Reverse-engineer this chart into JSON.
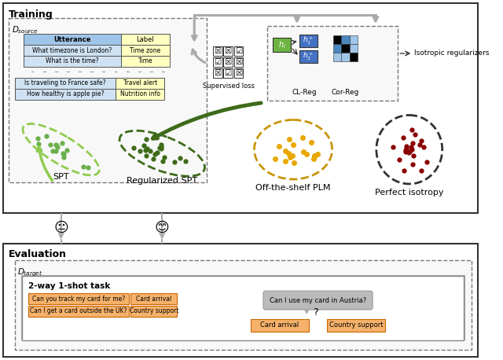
{
  "fig_width": 6.4,
  "fig_height": 4.58,
  "dpi": 100,
  "bg_color": "#ffffff",
  "training_label": "Training",
  "eval_label": "Evaluation",
  "dsource_label": "$D_{source}$",
  "dtarget_label": "$D_{target}$",
  "spt_label": "SPT",
  "reg_spt_label": "Regularized SPT",
  "offshelf_label": "Off-the-shelf PLM",
  "perfect_label": "Perfect isotropy",
  "supervised_loss_label": "Supervised loss",
  "clreg_label": "CL-Reg",
  "correg_label": "Cor-Reg",
  "isotropic_label": "Isotropic regularizers",
  "table_header": [
    "Utterance",
    "Label"
  ],
  "table_rows_top": [
    [
      "What timezone is London?",
      "Time zone"
    ],
    [
      "What is the time?",
      "Time"
    ]
  ],
  "table_rows_bottom": [
    [
      "Is traveling to France safe?",
      "Travel alert"
    ],
    [
      "How healthy is apple pie?",
      "Nutrition info"
    ]
  ],
  "task_label": "2-way 1-shot task",
  "task_examples": [
    [
      "Can you track my card for me?",
      "Card arrival"
    ],
    [
      "Can I get a card outside the UK?",
      "Country support"
    ]
  ],
  "query_text": "Can I use my card in Austria?",
  "answer_options": [
    "Card arrival",
    "Country support"
  ],
  "neutral_face": ":-|",
  "happy_face": ":-)",
  "colors": {
    "light_green_ellipse": "#90cc50",
    "dark_green": "#3d6b1a",
    "dark_green_dot": "#3d6b1a",
    "med_green_dot": "#6ab04c",
    "gold_ellipse": "#c8960c",
    "gold_dots": "#e8a800",
    "dark_red": "#8B0000",
    "gray_arrow": "#aaaaaa",
    "gray_arrow_dark": "#888888",
    "lime_green_box": "#6cb33f",
    "blue_box": "#4472c4",
    "orange_box": "#f6b26b",
    "orange_border": "#cc6600",
    "gray_box": "#bbbbbb",
    "table_header_blue": "#9fc5e8",
    "table_blue": "#cfe2f3",
    "table_beige": "#ffffc0",
    "matrix_black": "#000000",
    "matrix_blue_dark": "#4a86c0",
    "matrix_blue_light": "#9fc5e8"
  }
}
